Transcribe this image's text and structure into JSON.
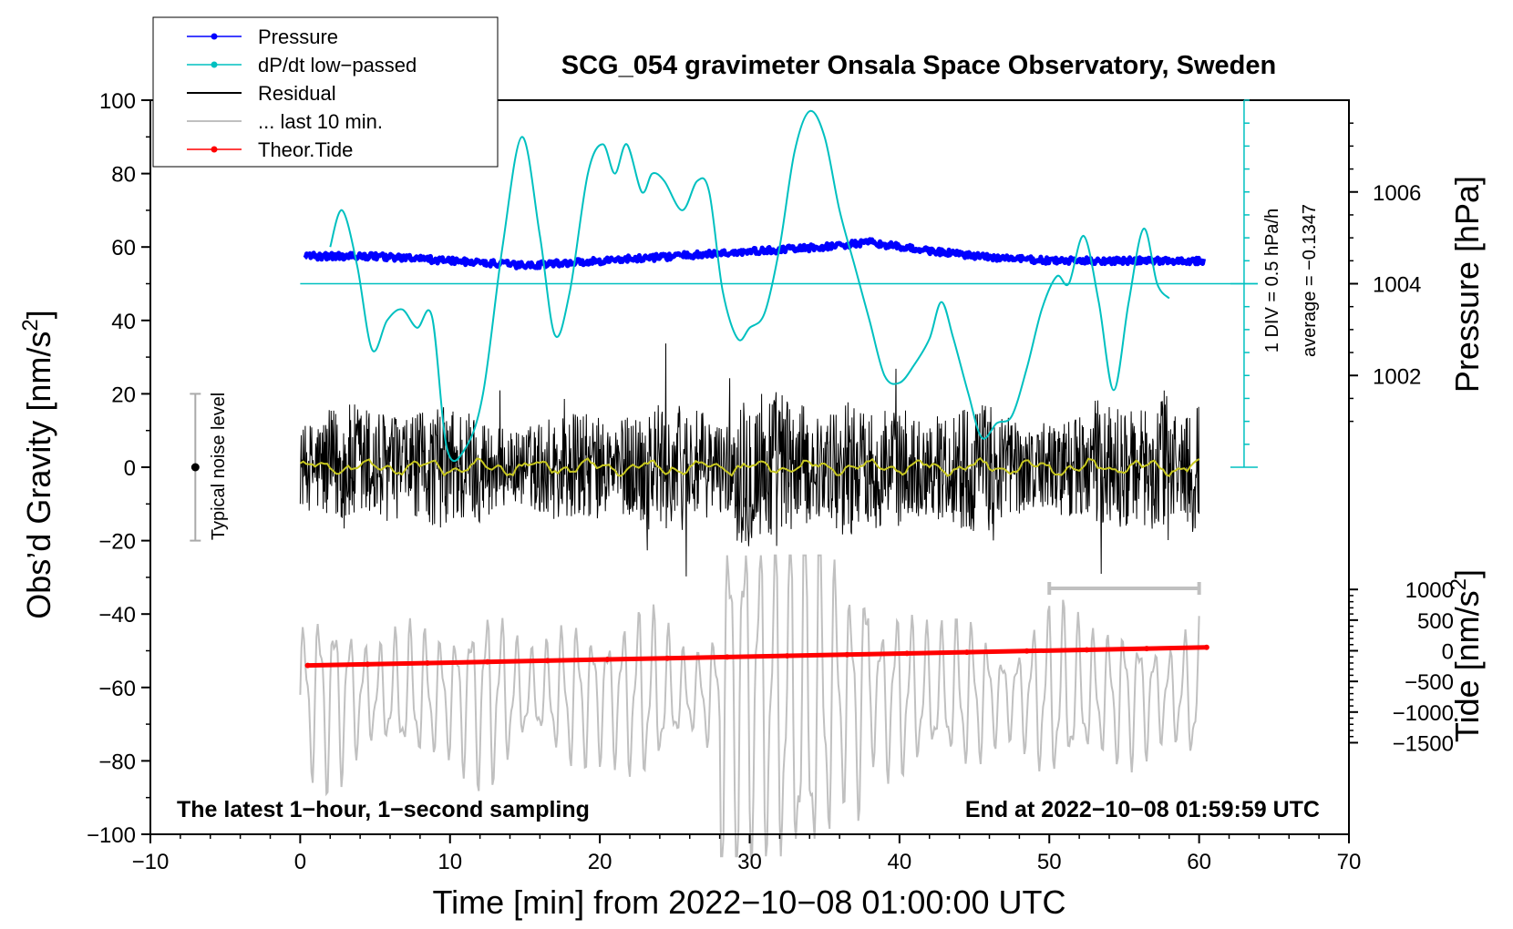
{
  "chart_data": {
    "type": "line",
    "title": "SCG_054 gravimeter Onsala Space Observatory, Sweden",
    "xlabel": "Time [min] from 2022−10−08 01:00:00 UTC",
    "ylabel_main": "Obs’d Gravity [nm/s",
    "ylabel_main_sup": "2",
    "ylabel_main_close": "]",
    "ylabel_pressure": "Pressure [hPa]",
    "ylabel_tide": "Tide [nm/s",
    "ylabel_tide_sup": "2",
    "ylabel_tide_close": "]",
    "xlim": [
      -10,
      70
    ],
    "ylim": [
      -100,
      100
    ],
    "xticks": [
      -10,
      0,
      10,
      20,
      30,
      40,
      50,
      60,
      70
    ],
    "xtick_labels": [
      "−10",
      "0",
      "10",
      "20",
      "30",
      "40",
      "50",
      "60",
      "70"
    ],
    "yticks": [
      -100,
      -80,
      -60,
      -40,
      -20,
      0,
      20,
      40,
      60,
      80,
      100
    ],
    "ytick_labels": [
      "−100",
      "−80",
      "−60",
      "−40",
      "−20",
      "0",
      "20",
      "40",
      "60",
      "80",
      "100"
    ],
    "pressure_ticks": [
      1002,
      1004,
      1006
    ],
    "pressure_tick_labels": [
      "1002",
      "1004",
      "1006"
    ],
    "tide_ticks": [
      -1500,
      -1000,
      -500,
      0,
      500,
      1000
    ],
    "tide_tick_labels": [
      "−1500",
      "−1000",
      "−500",
      "0",
      "500",
      "1000"
    ],
    "pressure_scale": {
      "ref_hpa": 1004,
      "ref_gravity": 50,
      "units_per_hpa": 12.5
    },
    "tide_scale": {
      "ref_tide": 0,
      "ref_gravity": -50,
      "units_per_1000": 16.7
    },
    "dpdt_panel": {
      "label": "1 DIV = 0.5 hPa/h",
      "average": "average = −0.1347",
      "x_min": 63,
      "y_top": 100,
      "y_bottom": 0,
      "baseline": 50
    },
    "legend": [
      {
        "label": "Pressure",
        "color": "#0000ff",
        "marker": true
      },
      {
        "label": "dP/dt low−passed",
        "color": "#00c0c0",
        "marker": true
      },
      {
        "label": "Residual",
        "color": "#000000",
        "marker": false
      },
      {
        "label": "... last 10 min.",
        "color": "#c0c0c0",
        "marker": false
      },
      {
        "label": "Theor.Tide",
        "color": "#ff0000",
        "marker": true
      }
    ],
    "noise_label": "Typical noise level",
    "noise_bar": {
      "x": -7,
      "y_low": -20,
      "y_high": 20
    },
    "window_bar": {
      "x_start": 50,
      "x_end": 60,
      "y": -33
    },
    "annotation_left": "The latest 1−hour, 1−second sampling",
    "annotation_right": "End at 2022−10−08 01:59:59 UTC",
    "series": [
      {
        "name": "Pressure",
        "color": "#0000ff",
        "units": "hPa",
        "x": [
          0,
          5,
          10,
          15,
          20,
          25,
          30,
          35,
          38,
          40,
          45,
          50,
          55,
          60
        ],
        "values": [
          1004.6,
          1004.6,
          1004.5,
          1004.4,
          1004.5,
          1004.6,
          1004.7,
          1004.8,
          1004.9,
          1004.8,
          1004.6,
          1004.5,
          1004.5,
          1004.5
        ]
      },
      {
        "name": "dP/dt low-passed",
        "color": "#00c0c0",
        "units": "gravity-axis",
        "x": [
          2,
          2.8,
          3.8,
          4.8,
          5.8,
          6.8,
          7.8,
          8.8,
          9.8,
          11,
          12.2,
          13.5,
          14.8,
          16,
          17,
          18,
          19.2,
          20.2,
          21,
          21.8,
          22.8,
          23.5,
          24.3,
          25.5,
          26.5,
          27.3,
          28.2,
          29.2,
          30,
          31,
          32,
          33,
          34,
          35,
          36,
          37,
          38,
          39,
          40,
          41,
          42,
          42.8,
          43.6,
          44.6,
          45.5,
          46.5,
          47.5,
          48.5,
          49.5,
          50.5,
          51.3,
          52.3,
          53.3,
          54.3,
          55.3,
          56.3,
          57.2,
          58
        ],
        "values": [
          60,
          70,
          55,
          32,
          40,
          43,
          38,
          41,
          5,
          5,
          20,
          60,
          90,
          63,
          36,
          48,
          80,
          88,
          80,
          88,
          75,
          80,
          78,
          70,
          78,
          75,
          48,
          35,
          38,
          42,
          60,
          86,
          97,
          90,
          70,
          55,
          40,
          25,
          23,
          28,
          35,
          45,
          35,
          20,
          8,
          12,
          14,
          27,
          43,
          52,
          50,
          63,
          45,
          21,
          45,
          65,
          50,
          46
        ]
      },
      {
        "name": "Residual",
        "color": "#000000",
        "units": "nm/s2",
        "x": [
          0,
          60
        ],
        "values": [
          0,
          0
        ],
        "amplitude_typical": 15,
        "amplitude_max": 38
      },
      {
        "name": "Residual low-passed",
        "color": "#c8c820",
        "units": "nm/s2",
        "x": [
          0,
          60
        ],
        "values": [
          0,
          0
        ]
      },
      {
        "name": "... last 10 min.",
        "color": "#c0c0c0",
        "units": "nm/s2",
        "x": [
          0,
          60
        ],
        "center": -62,
        "amplitude_typical": 10,
        "amplitude_max": 38
      },
      {
        "name": "Theor.Tide",
        "color": "#ff0000",
        "units": "nm/s2",
        "x": [
          0.5,
          60.5
        ],
        "values": [
          -240,
          55
        ]
      }
    ]
  }
}
